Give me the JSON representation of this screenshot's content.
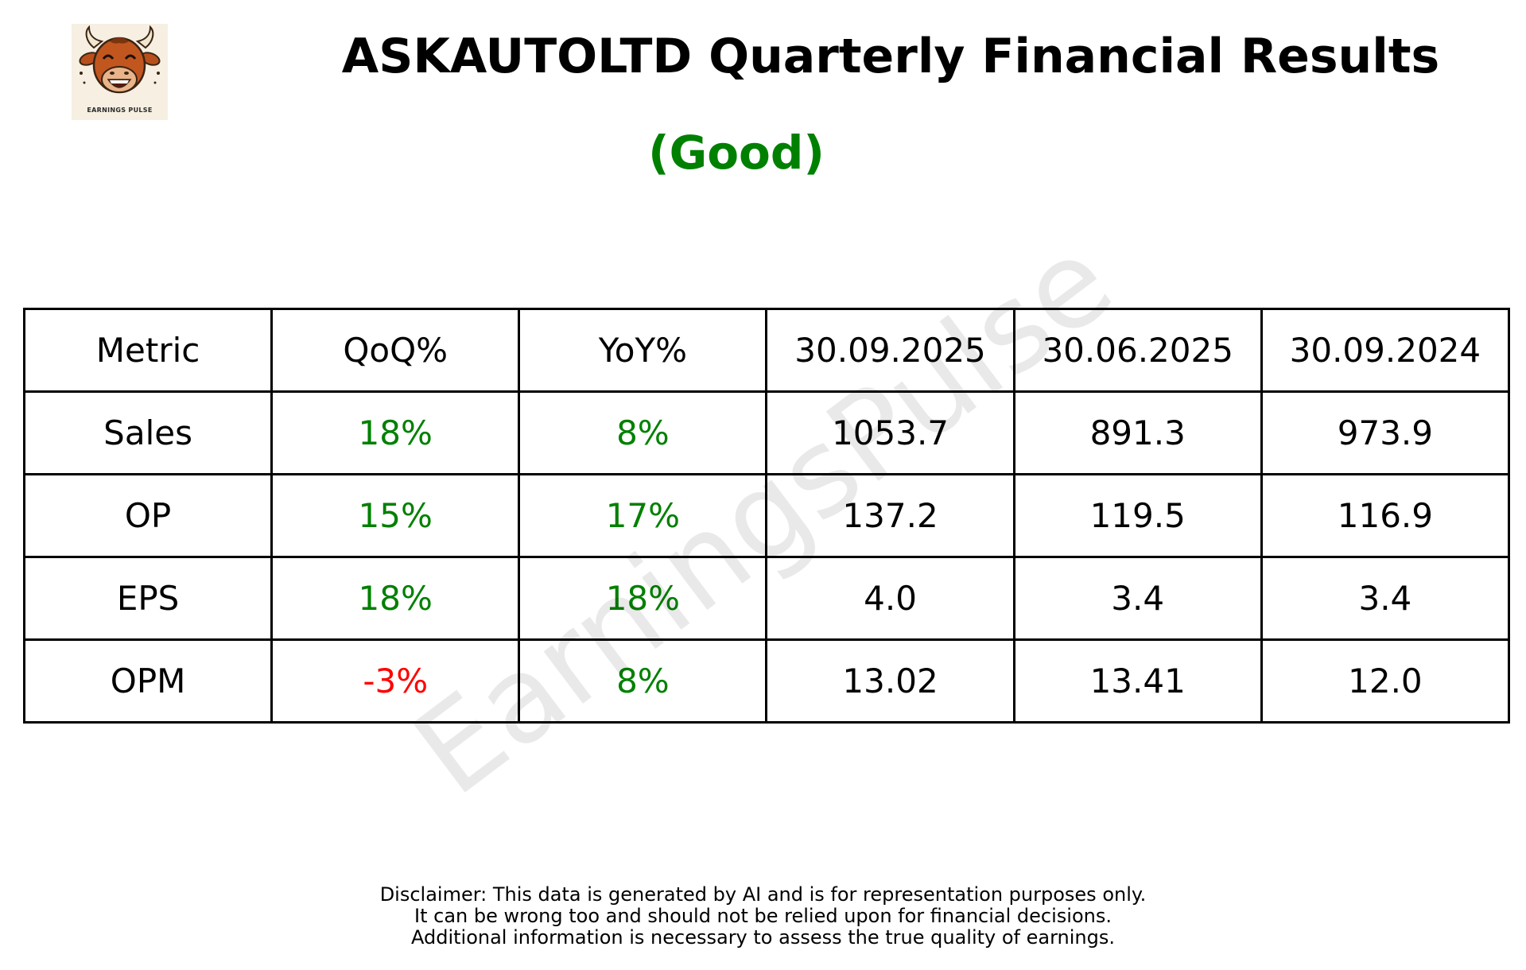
{
  "logo": {
    "text": "EARNINGS PULSE",
    "icon": "bull-mascot-icon"
  },
  "title": "ASKAUTOLTD Quarterly Financial Results",
  "rating": {
    "label": "(Good)",
    "color": "#008000"
  },
  "watermark": "EarningsPulse",
  "colors": {
    "positive": "#008000",
    "negative": "#ff0000",
    "neutral": "#000000"
  },
  "table": {
    "headers": [
      "Metric",
      "QoQ%",
      "YoY%",
      "30.09.2025",
      "30.06.2025",
      "30.09.2024"
    ],
    "rows": [
      {
        "metric": "Sales",
        "qoq": "18%",
        "qoq_sign": "positive",
        "yoy": "8%",
        "yoy_sign": "positive",
        "v1": "1053.7",
        "v2": "891.3",
        "v3": "973.9"
      },
      {
        "metric": "OP",
        "qoq": "15%",
        "qoq_sign": "positive",
        "yoy": "17%",
        "yoy_sign": "positive",
        "v1": "137.2",
        "v2": "119.5",
        "v3": "116.9"
      },
      {
        "metric": "EPS",
        "qoq": "18%",
        "qoq_sign": "positive",
        "yoy": "18%",
        "yoy_sign": "positive",
        "v1": "4.0",
        "v2": "3.4",
        "v3": "3.4"
      },
      {
        "metric": "OPM",
        "qoq": "-3%",
        "qoq_sign": "negative",
        "yoy": "8%",
        "yoy_sign": "positive",
        "v1": "13.02",
        "v2": "13.41",
        "v3": "12.0"
      }
    ]
  },
  "disclaimer": {
    "line1": "Disclaimer: This data is generated by AI and is for representation purposes only.",
    "line2": "It can be wrong too and should not be relied upon for financial decisions.",
    "line3": "Additional information is necessary to assess the true quality of earnings."
  }
}
